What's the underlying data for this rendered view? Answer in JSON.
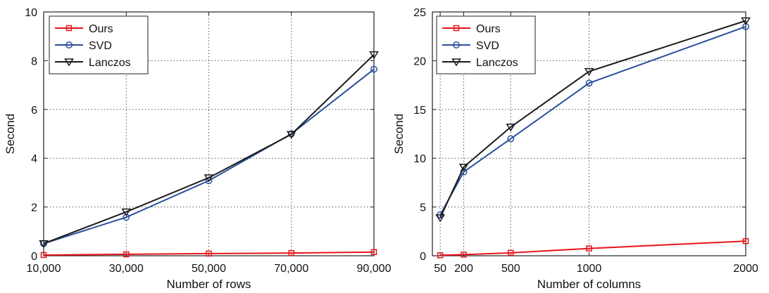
{
  "chart_data": [
    {
      "type": "line",
      "title": "",
      "xlabel": "Number of rows",
      "ylabel": "Second",
      "x": [
        10000,
        30000,
        50000,
        70000,
        90000
      ],
      "xticks": [
        "10,000",
        "30,000",
        "50,000",
        "70,000",
        "90,000"
      ],
      "xlim": [
        10000,
        90000
      ],
      "ylim": [
        0,
        10
      ],
      "yticks": [
        "0",
        "2",
        "4",
        "6",
        "8",
        "10"
      ],
      "grid": true,
      "legend_position": "top-left",
      "series": [
        {
          "name": "Ours",
          "color": "#e8141b",
          "marker": "square",
          "values": [
            0.03,
            0.06,
            0.09,
            0.11,
            0.15
          ]
        },
        {
          "name": "SVD",
          "color": "#2a4f9e",
          "marker": "circle",
          "values": [
            0.5,
            1.58,
            3.08,
            5.0,
            7.65
          ]
        },
        {
          "name": "Lanczos",
          "color": "#1a1a1a",
          "marker": "triangle-down",
          "values": [
            0.5,
            1.8,
            3.2,
            4.98,
            8.25
          ]
        }
      ]
    },
    {
      "type": "line",
      "title": "",
      "xlabel": "Number of columns",
      "ylabel": "Second",
      "x": [
        50,
        200,
        500,
        1000,
        2000
      ],
      "xticks": [
        "50",
        "200",
        "500",
        "1000",
        "2000"
      ],
      "xlim": [
        0,
        2000
      ],
      "ylim": [
        0,
        25
      ],
      "yticks": [
        "0",
        "5",
        "10",
        "15",
        "20",
        "25"
      ],
      "grid": true,
      "legend_position": "top-left",
      "series": [
        {
          "name": "Ours",
          "color": "#e8141b",
          "marker": "square",
          "values": [
            0.05,
            0.12,
            0.3,
            0.75,
            1.5
          ]
        },
        {
          "name": "SVD",
          "color": "#2a4f9e",
          "marker": "circle",
          "values": [
            4.2,
            8.6,
            12.0,
            17.7,
            23.5
          ]
        },
        {
          "name": "Lanczos",
          "color": "#1a1a1a",
          "marker": "triangle-down",
          "values": [
            3.9,
            9.1,
            13.2,
            18.9,
            24.1
          ]
        }
      ]
    }
  ]
}
